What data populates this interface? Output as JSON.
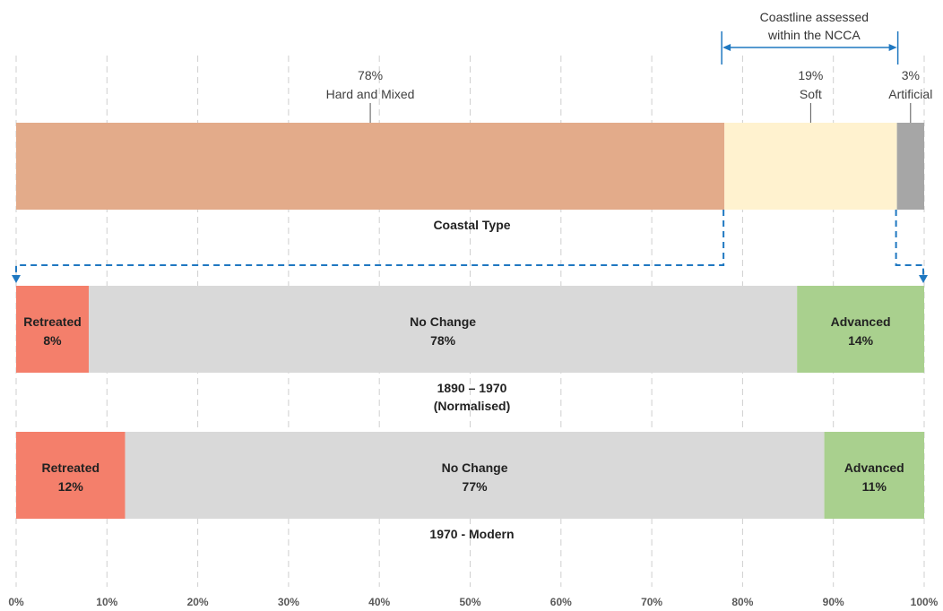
{
  "chart_data": {
    "type": "bar",
    "orientation": "horizontal",
    "stacked": true,
    "x_ticks": [
      "0%",
      "10%",
      "20%",
      "30%",
      "40%",
      "50%",
      "60%",
      "70%",
      "80%",
      "90%",
      "100%"
    ],
    "xlim": [
      0,
      100
    ],
    "grid": "vertical-dashed",
    "annotation": {
      "text_line1": "Coastline  assessed",
      "text_line2": "within the NCCA",
      "range": [
        78,
        97
      ]
    },
    "bars": [
      {
        "caption_line1": "Coastal Type",
        "caption_line2": "",
        "label_position": "above",
        "segments": [
          {
            "label": "Hard and Mixed",
            "value_label": "78%",
            "value": 78,
            "color": "#e3ab8a"
          },
          {
            "label": "Soft",
            "value_label": "19%",
            "value": 19,
            "color": "#fff2cf"
          },
          {
            "label": "Artificial",
            "value_label": "3%",
            "value": 3,
            "color": "#a6a6a6"
          }
        ]
      },
      {
        "caption_line1": "1890 – 1970",
        "caption_line2": "(Normalised)",
        "label_position": "inside",
        "segments": [
          {
            "label": "Retreated",
            "value_label": "8%",
            "value": 8,
            "color": "#f47f6b"
          },
          {
            "label": "No Change",
            "value_label": "78%",
            "value": 78,
            "color": "#d9d9d9"
          },
          {
            "label": "Advanced",
            "value_label": "14%",
            "value": 14,
            "color": "#a9d08e"
          }
        ]
      },
      {
        "caption_line1": "1970 - Modern",
        "caption_line2": "",
        "label_position": "inside",
        "segments": [
          {
            "label": "Retreated",
            "value_label": "12%",
            "value": 12,
            "color": "#f47f6b"
          },
          {
            "label": "No Change",
            "value_label": "77%",
            "value": 77,
            "color": "#d9d9d9"
          },
          {
            "label": "Advanced",
            "value_label": "11%",
            "value": 11,
            "color": "#a9d08e"
          }
        ]
      }
    ],
    "connector_color": "#1f78c1"
  }
}
